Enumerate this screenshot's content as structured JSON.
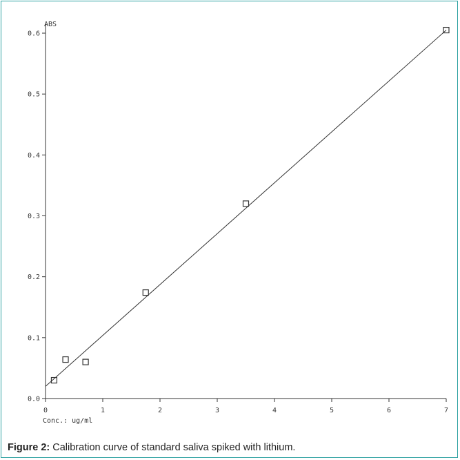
{
  "chart_data": {
    "type": "scatter",
    "ylabel": "ABS",
    "xlabel": "Conc.: ug/ml",
    "xlim": [
      0,
      7
    ],
    "ylim": [
      0,
      0.6
    ],
    "x_ticks": [
      "0",
      "1",
      "2",
      "3",
      "4",
      "5",
      "6",
      "7"
    ],
    "y_ticks": [
      "0.0",
      "0.1",
      "0.2",
      "0.3",
      "0.4",
      "0.5",
      "0.6"
    ],
    "grid": false,
    "series": [
      {
        "points": [
          {
            "x": 0.15,
            "y": 0.03
          },
          {
            "x": 0.35,
            "y": 0.064
          },
          {
            "x": 0.7,
            "y": 0.06
          },
          {
            "x": 1.75,
            "y": 0.174
          },
          {
            "x": 3.5,
            "y": 0.32
          },
          {
            "x": 7.0,
            "y": 0.605
          }
        ]
      }
    ],
    "fit_line": {
      "x": [
        0,
        7
      ],
      "y": [
        0.02,
        0.605
      ]
    }
  },
  "caption": {
    "label": "Figure 2:",
    "text": " Calibration curve of standard saliva spiked with lithium."
  },
  "colors": {
    "frame": "#2aa0a0",
    "axis": "#333333",
    "marker": "#333333"
  }
}
